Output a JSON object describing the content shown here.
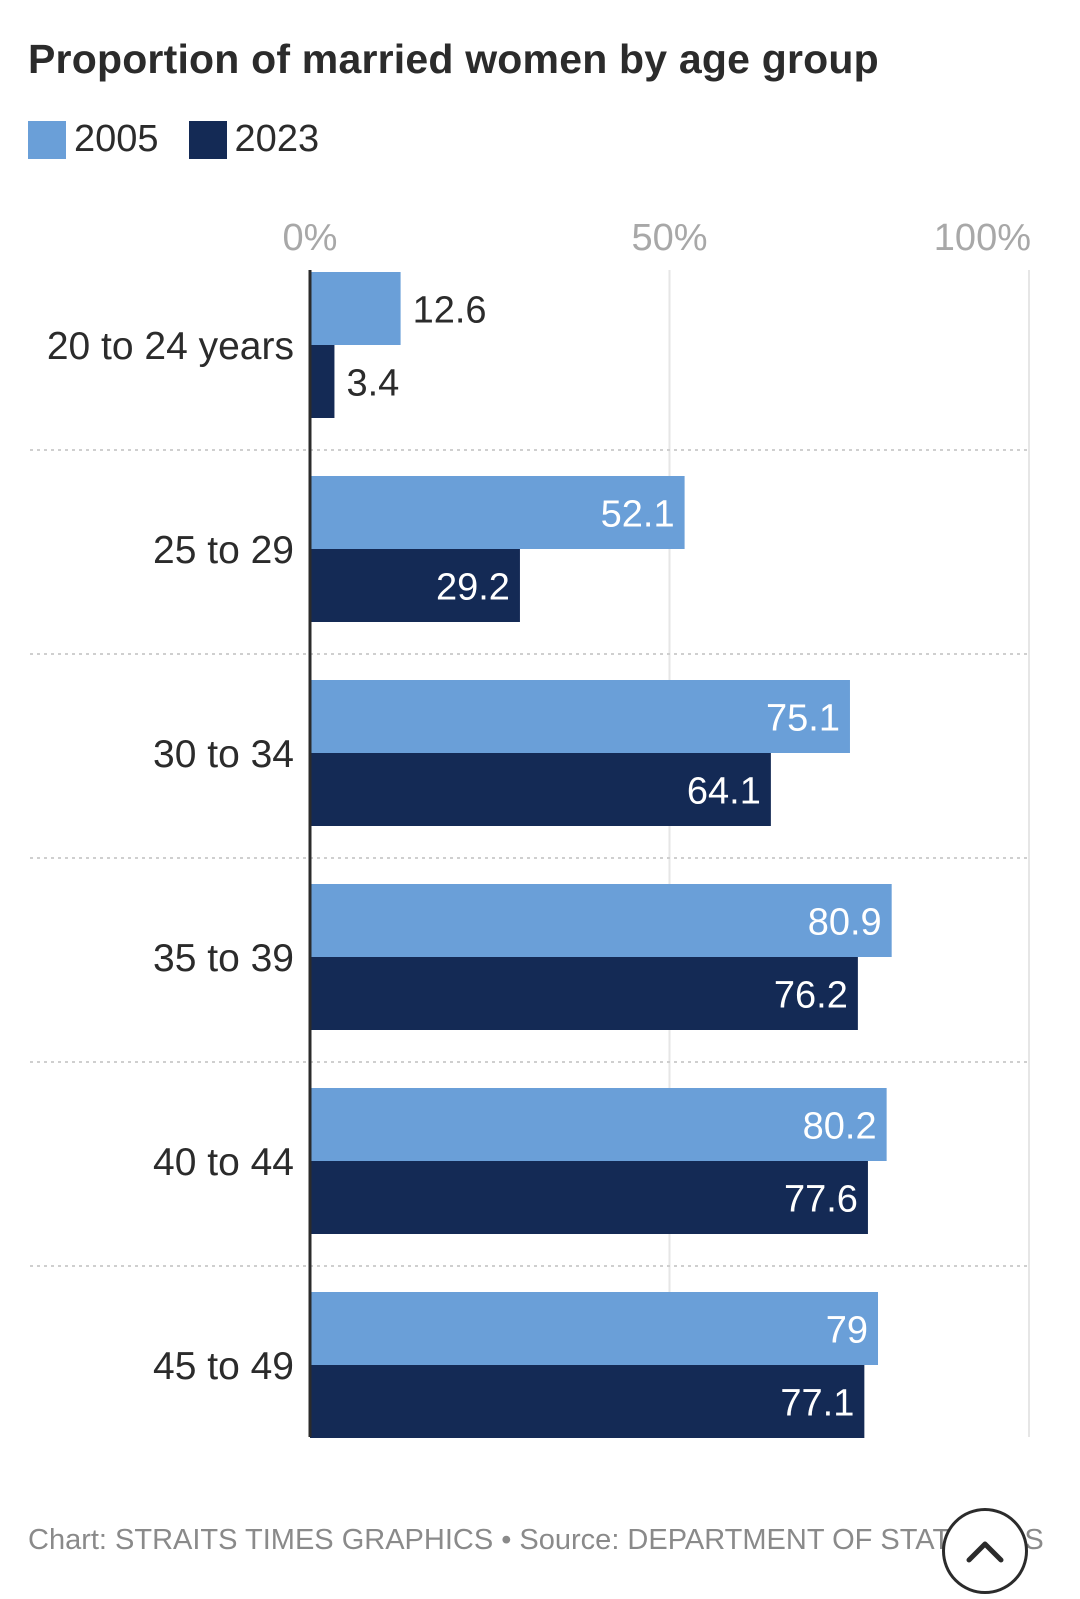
{
  "chart_data": {
    "type": "bar",
    "orientation": "horizontal",
    "title": "Proportion of married women by age group",
    "categories": [
      "20 to 24 years",
      "25 to 29",
      "30 to 34",
      "35 to 39",
      "40 to 44",
      "45 to 49"
    ],
    "series": [
      {
        "name": "2005",
        "color": "#6a9fd8",
        "values": [
          12.6,
          52.1,
          75.1,
          80.9,
          80.2,
          79
        ]
      },
      {
        "name": "2023",
        "color": "#142a55",
        "values": [
          3.4,
          29.2,
          64.1,
          76.2,
          77.6,
          77.1
        ]
      }
    ],
    "xlim": [
      0,
      100
    ],
    "xticks": [
      0,
      50,
      100
    ],
    "xtick_labels": [
      "0%",
      "50%",
      "100%"
    ],
    "xticks_position": "top",
    "legend_position": "top-left",
    "grid": true
  },
  "footer": {
    "credit": "Chart: STRAITS TIMES GRAPHICS • Source: DEPARTMENT OF STATISTICS"
  },
  "icons": {
    "scroll_top": "chevron-up-icon"
  }
}
